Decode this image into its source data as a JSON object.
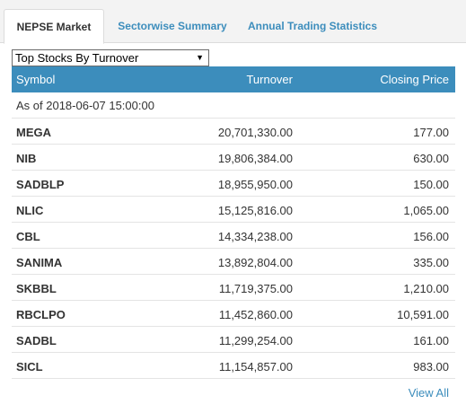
{
  "tabs": [
    {
      "label": "NEPSE Market"
    },
    {
      "label": "Sectorwise Summary"
    },
    {
      "label": "Annual Trading Statistics"
    }
  ],
  "select": {
    "value": "Top Stocks By Turnover"
  },
  "table": {
    "headers": {
      "symbol": "Symbol",
      "turnover": "Turnover",
      "closing": "Closing Price"
    },
    "as_of": "As of 2018-06-07 15:00:00",
    "rows": [
      {
        "symbol": "MEGA",
        "turnover": "20,701,330.00",
        "closing": "177.00"
      },
      {
        "symbol": "NIB",
        "turnover": "19,806,384.00",
        "closing": "630.00"
      },
      {
        "symbol": "SADBLP",
        "turnover": "18,955,950.00",
        "closing": "150.00"
      },
      {
        "symbol": "NLIC",
        "turnover": "15,125,816.00",
        "closing": "1,065.00"
      },
      {
        "symbol": "CBL",
        "turnover": "14,334,238.00",
        "closing": "156.00"
      },
      {
        "symbol": "SANIMA",
        "turnover": "13,892,804.00",
        "closing": "335.00"
      },
      {
        "symbol": "SKBBL",
        "turnover": "11,719,375.00",
        "closing": "1,210.00"
      },
      {
        "symbol": "RBCLPO",
        "turnover": "11,452,860.00",
        "closing": "10,591.00"
      },
      {
        "symbol": "SADBL",
        "turnover": "11,299,254.00",
        "closing": "161.00"
      },
      {
        "symbol": "SICL",
        "turnover": "11,154,857.00",
        "closing": "983.00"
      }
    ]
  },
  "view_all": "View All",
  "colors": {
    "accent": "#3c8dbc",
    "tabbar": "#f3f3f3"
  }
}
